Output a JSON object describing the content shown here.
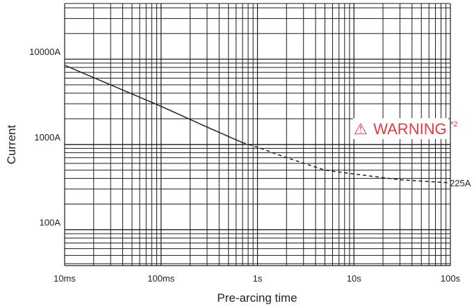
{
  "chart_data": {
    "type": "line",
    "xlabel": "Pre-arcing time",
    "ylabel": "Current",
    "x_scale": "log",
    "y_scale": "log",
    "xlim": [
      "10ms",
      "100s"
    ],
    "x_ticks": [
      {
        "value_s": 0.01,
        "label": "10ms"
      },
      {
        "value_s": 0.1,
        "label": "100ms"
      },
      {
        "value_s": 1,
        "label": "1s"
      },
      {
        "value_s": 10,
        "label": "10s"
      },
      {
        "value_s": 100,
        "label": "100s"
      }
    ],
    "y_ticks": [
      {
        "value_a": 100,
        "label": "100A"
      },
      {
        "value_a": 1000,
        "label": "1000A"
      },
      {
        "value_a": 10000,
        "label": "10000A"
      }
    ],
    "grid": true,
    "series": [
      {
        "style": "solid",
        "color": "#222222",
        "points": [
          [
            0.01,
            8500
          ],
          [
            0.03,
            5000
          ],
          [
            0.1,
            2800
          ],
          [
            0.3,
            1600
          ],
          [
            0.7,
            1050
          ]
        ]
      },
      {
        "style": "dashed",
        "color": "#222222",
        "points": [
          [
            0.7,
            1050
          ],
          [
            1,
            930
          ],
          [
            2,
            700
          ],
          [
            5,
            500
          ],
          [
            10,
            450
          ],
          [
            30,
            385
          ],
          [
            100,
            355
          ]
        ]
      }
    ],
    "annotations": [
      {
        "text": "225A"
      }
    ],
    "warning": {
      "symbol": "⚠",
      "text": "WARNING",
      "superscript": "*2",
      "color": "#e53a40"
    }
  }
}
